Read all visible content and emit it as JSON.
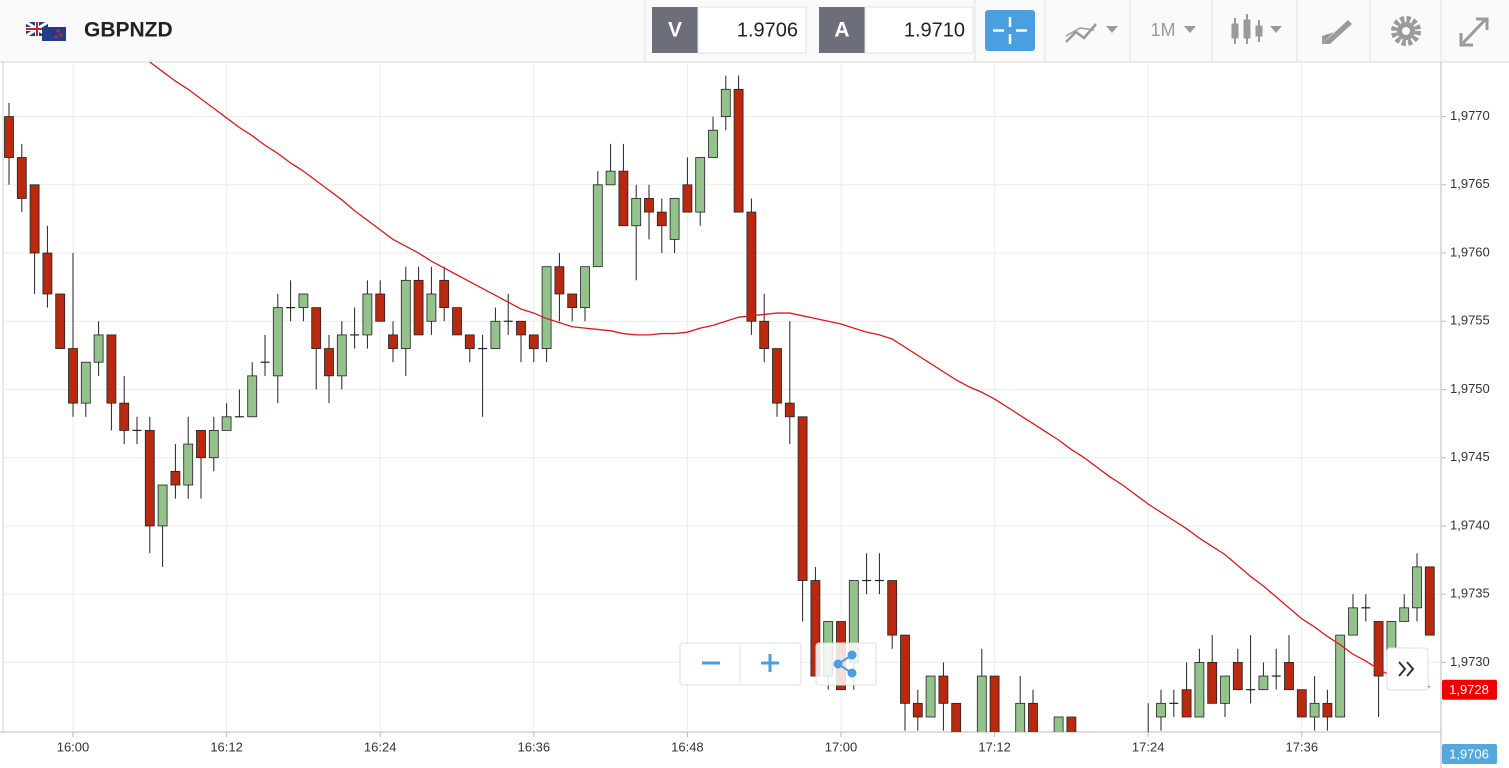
{
  "header": {
    "symbol": "GBPNZD",
    "bid_label": "V",
    "bid": "1.9706",
    "ask_label": "A",
    "ask": "1.9710",
    "timeframe": "1M"
  },
  "chart_data": {
    "type": "candlestick",
    "categories": [
      null,
      null,
      null,
      null,
      null,
      "16:00",
      null,
      null,
      null,
      null,
      null,
      null,
      null,
      null,
      null,
      null,
      null,
      "16:12",
      null,
      null,
      null,
      null,
      null,
      null,
      null,
      null,
      null,
      null,
      null,
      "16:24",
      null,
      null,
      null,
      null,
      null,
      null,
      null,
      null,
      null,
      null,
      null,
      "16:36",
      null,
      null,
      null,
      null,
      null,
      null,
      null,
      null,
      null,
      null,
      null,
      "16:48",
      null,
      null,
      null,
      null,
      null,
      null,
      null,
      null,
      null,
      null,
      null,
      "17:00",
      null,
      null,
      null,
      null,
      null,
      null,
      null,
      null,
      null,
      null,
      null,
      "17:12",
      null,
      null,
      null,
      null,
      null,
      null,
      null,
      null,
      null,
      null,
      null,
      "17:24",
      null,
      null,
      null,
      null,
      null,
      null,
      null,
      null,
      null,
      null,
      null,
      "17:36",
      null,
      null,
      null,
      null,
      null,
      null,
      null,
      null,
      null,
      null
    ],
    "open": [
      1.977,
      1.9767,
      1.9765,
      1.976,
      1.9757,
      1.9753,
      1.9749,
      1.9752,
      1.9754,
      1.9749,
      1.9747,
      1.9747,
      1.974,
      1.9744,
      1.9743,
      1.9747,
      1.9745,
      1.9747,
      1.9748,
      1.9748,
      1.9752,
      1.9751,
      1.9756,
      1.9756,
      1.9756,
      1.9753,
      1.9751,
      1.9754,
      1.9754,
      1.9757,
      1.9754,
      1.9753,
      1.9758,
      1.9755,
      1.9758,
      1.9756,
      1.9754,
      1.9753,
      1.9753,
      1.9755,
      1.9755,
      1.9754,
      1.9753,
      1.9759,
      1.9757,
      1.9756,
      1.9759,
      1.9765,
      1.9766,
      1.9762,
      1.9764,
      1.9763,
      1.9761,
      1.9765,
      1.9763,
      1.9767,
      1.977,
      1.9772,
      1.9763,
      1.9755,
      1.9753,
      1.9749,
      1.9748,
      1.9736,
      1.9729,
      1.9733,
      1.973,
      1.9736,
      1.9736,
      1.9736,
      1.9732,
      1.9727,
      1.9726,
      1.9729,
      1.9727,
      null,
      1.9724,
      1.9729,
      null,
      1.9724,
      1.9727,
      null,
      1.9724,
      1.9726,
      null,
      null,
      null,
      null,
      null,
      1.9724,
      1.9726,
      1.9727,
      1.9728,
      1.9726,
      1.973,
      1.9727,
      1.973,
      1.9728,
      1.9728,
      1.9729,
      1.973,
      1.9728,
      1.9726,
      1.9727,
      1.9726,
      1.9732,
      1.9734,
      1.9733,
      1.9729,
      1.9733,
      1.9734,
      1.9737
    ],
    "high": [
      1.9771,
      1.9768,
      1.9765,
      1.9762,
      1.9757,
      1.976,
      1.9752,
      1.9755,
      1.9754,
      1.9751,
      1.9748,
      1.9748,
      1.9743,
      1.9746,
      1.9748,
      1.9747,
      1.9748,
      1.9749,
      1.975,
      1.9752,
      1.9754,
      1.9757,
      1.9758,
      1.9757,
      1.9756,
      1.9754,
      1.9755,
      1.9756,
      1.9758,
      1.9758,
      1.9755,
      1.9759,
      1.9759,
      1.9759,
      1.9759,
      1.9756,
      1.9754,
      1.9754,
      1.9756,
      1.9757,
      1.9755,
      1.9754,
      1.9759,
      1.976,
      1.9757,
      1.9759,
      1.9766,
      1.9768,
      1.9768,
      1.9765,
      1.9765,
      1.9764,
      1.9764,
      1.9767,
      1.9767,
      1.977,
      1.9773,
      1.9773,
      1.9764,
      1.9757,
      1.9753,
      1.9755,
      1.9748,
      1.9737,
      1.9733,
      1.9733,
      1.9736,
      1.9738,
      1.9738,
      1.9736,
      1.9732,
      1.9728,
      1.9729,
      1.973,
      1.9727,
      null,
      1.9731,
      1.9729,
      null,
      1.9729,
      1.9728,
      null,
      1.9726,
      1.9726,
      null,
      null,
      null,
      null,
      null,
      1.9727,
      1.9728,
      1.9728,
      1.973,
      1.9731,
      1.9732,
      1.9729,
      1.9731,
      1.9732,
      1.973,
      1.9731,
      1.9732,
      1.9728,
      1.9729,
      1.9728,
      1.9732,
      1.9735,
      1.9735,
      1.9733,
      1.9733,
      1.9735,
      1.9738,
      1.9737
    ],
    "low": [
      1.9765,
      1.9763,
      1.9757,
      1.9756,
      1.9753,
      1.9748,
      1.9748,
      1.9751,
      1.9747,
      1.9746,
      1.9746,
      1.9738,
      1.9737,
      1.9742,
      1.9742,
      1.9742,
      1.9744,
      1.9747,
      1.9748,
      1.9748,
      1.9751,
      1.9749,
      1.9755,
      1.9755,
      1.975,
      1.9749,
      1.975,
      1.9753,
      1.9753,
      1.9755,
      1.9752,
      1.9751,
      1.9754,
      1.9754,
      1.9755,
      1.9754,
      1.9752,
      1.9748,
      1.9753,
      1.9754,
      1.9752,
      1.9752,
      1.9752,
      1.9755,
      1.9755,
      1.9755,
      1.9759,
      1.9765,
      1.9762,
      1.9758,
      1.9761,
      1.976,
      1.976,
      1.9763,
      1.9762,
      1.9767,
      1.9769,
      1.9763,
      1.9754,
      1.9752,
      1.9748,
      1.9746,
      1.9733,
      1.9729,
      1.9728,
      1.9728,
      1.9728,
      1.9735,
      1.9735,
      1.9731,
      1.9725,
      1.9725,
      1.9726,
      1.9725,
      1.9723,
      null,
      1.9723,
      1.9723,
      null,
      1.9723,
      1.9723,
      null,
      1.9723,
      1.9723,
      null,
      null,
      null,
      null,
      null,
      1.9723,
      1.9725,
      1.9726,
      1.9726,
      1.9726,
      1.9727,
      1.9726,
      1.9728,
      1.9727,
      1.9728,
      1.9728,
      1.9728,
      1.9726,
      1.9725,
      1.9725,
      1.9726,
      1.9732,
      1.9733,
      1.9726,
      1.9728,
      1.9733,
      1.9733,
      1.9732
    ],
    "close": [
      1.9767,
      1.9764,
      1.976,
      1.9757,
      1.9753,
      1.9749,
      1.9752,
      1.9754,
      1.9749,
      1.9747,
      1.9747,
      1.974,
      1.9743,
      1.9743,
      1.9746,
      1.9745,
      1.9747,
      1.9748,
      1.9748,
      1.9751,
      1.9752,
      1.9756,
      1.9756,
      1.9757,
      1.9753,
      1.9751,
      1.9754,
      1.9754,
      1.9757,
      1.9755,
      1.9753,
      1.9758,
      1.9754,
      1.9757,
      1.9756,
      1.9754,
      1.9753,
      1.9753,
      1.9755,
      1.9755,
      1.9754,
      1.9753,
      1.9759,
      1.9757,
      1.9756,
      1.9759,
      1.9765,
      1.9766,
      1.9762,
      1.9764,
      1.9763,
      1.9762,
      1.9764,
      1.9763,
      1.9767,
      1.9769,
      1.9772,
      1.9763,
      1.9755,
      1.9753,
      1.9749,
      1.9748,
      1.9736,
      1.9729,
      1.9733,
      1.9728,
      1.9736,
      1.9736,
      1.9736,
      1.9732,
      1.9727,
      1.9726,
      1.9729,
      1.9727,
      1.9724,
      null,
      1.9729,
      1.9724,
      null,
      1.9727,
      1.9724,
      null,
      1.9726,
      1.9724,
      null,
      null,
      null,
      null,
      null,
      1.9724,
      1.9727,
      1.9727,
      1.9726,
      1.973,
      1.9727,
      1.9729,
      1.9728,
      1.9728,
      1.9729,
      1.9729,
      1.9728,
      1.9726,
      1.9727,
      1.9726,
      1.9732,
      1.9734,
      1.9734,
      1.9729,
      1.9733,
      1.9734,
      1.9737,
      1.9732
    ],
    "up_color": "#94c28b",
    "down_color": "#b8290f",
    "ma": {
      "color": "#e0191a",
      "values": [
        null,
        null,
        null,
        null,
        null,
        null,
        null,
        null,
        null,
        null,
        null,
        1.9774,
        1.97733,
        1.97726,
        1.9772,
        1.97713,
        1.97706,
        1.97699,
        1.97692,
        1.97686,
        1.97679,
        1.97673,
        1.97666,
        1.9766,
        1.97653,
        1.97646,
        1.97639,
        1.97631,
        1.97624,
        1.97617,
        1.9761,
        1.97605,
        1.976,
        1.97594,
        1.97589,
        1.97584,
        1.97579,
        1.97574,
        1.97569,
        1.97564,
        1.97559,
        1.97556,
        1.97552,
        1.97549,
        1.97546,
        1.97545,
        1.97544,
        1.97543,
        1.97541,
        1.9754,
        1.9754,
        1.97541,
        1.97541,
        1.97542,
        1.97545,
        1.97547,
        1.9755,
        1.97553,
        1.97554,
        1.97555,
        1.97556,
        1.97556,
        1.97554,
        1.97552,
        1.9755,
        1.97548,
        1.97545,
        1.97542,
        1.9754,
        1.97537,
        1.97531,
        1.97525,
        1.97519,
        1.97513,
        1.97507,
        1.97502,
        1.97498,
        1.97493,
        1.97487,
        1.97481,
        1.97475,
        1.97469,
        1.97463,
        1.97456,
        1.9745,
        1.97443,
        1.97436,
        1.9743,
        1.97423,
        1.97416,
        1.9741,
        1.97404,
        1.97398,
        1.97391,
        1.97385,
        1.97379,
        1.97371,
        1.97363,
        1.97356,
        1.97348,
        1.9734,
        1.97332,
        1.97326,
        1.97319,
        1.97313,
        1.97306,
        1.97301,
        1.97295,
        1.9729,
        1.97287,
        1.97285,
        1.97282
      ]
    },
    "ylim": [
      1.97249,
      1.9774
    ],
    "yticks": [
      {
        "value": 1.973,
        "label": "1,9730"
      },
      {
        "value": 1.9735,
        "label": "1,9735"
      },
      {
        "value": 1.974,
        "label": "1,9740"
      },
      {
        "value": 1.9745,
        "label": "1,9745"
      },
      {
        "value": 1.975,
        "label": "1,9750"
      },
      {
        "value": 1.9755,
        "label": "1,9755"
      },
      {
        "value": 1.976,
        "label": "1,9760"
      },
      {
        "value": 1.9765,
        "label": "1,9765"
      },
      {
        "value": 1.977,
        "label": "1,9770"
      }
    ],
    "grid": true,
    "price_markers": [
      {
        "value": 1.9728,
        "label": "1,9728",
        "color": "#f00000"
      },
      {
        "value": 1.9706,
        "label": "1,9706",
        "color": "#56a8dc"
      }
    ]
  }
}
